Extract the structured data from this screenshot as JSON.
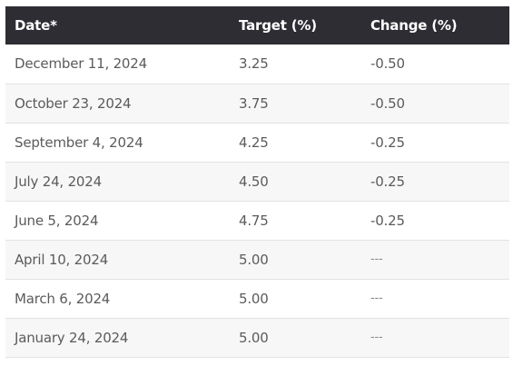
{
  "table": {
    "headers": [
      "Date*",
      "Target (%)",
      "Change (%)"
    ],
    "rows": [
      [
        "December 11, 2024",
        "3.25",
        "-0.50"
      ],
      [
        "October 23, 2024",
        "3.75",
        "-0.50"
      ],
      [
        "September 4, 2024",
        "4.25",
        "-0.25"
      ],
      [
        "July 24, 2024",
        "4.50",
        "-0.25"
      ],
      [
        "June 5, 2024",
        "4.75",
        "-0.25"
      ],
      [
        "April 10, 2024",
        "5.00",
        "---"
      ],
      [
        "March 6, 2024",
        "5.00",
        "---"
      ],
      [
        "January 24, 2024",
        "5.00",
        "---"
      ]
    ]
  },
  "colors": {
    "header_background": "#2e2d33",
    "header_text": "#ffffff",
    "body_text": "#5b5b5b",
    "row_alt_background": "#f7f7f7",
    "row_border": "#e2e2e2"
  }
}
